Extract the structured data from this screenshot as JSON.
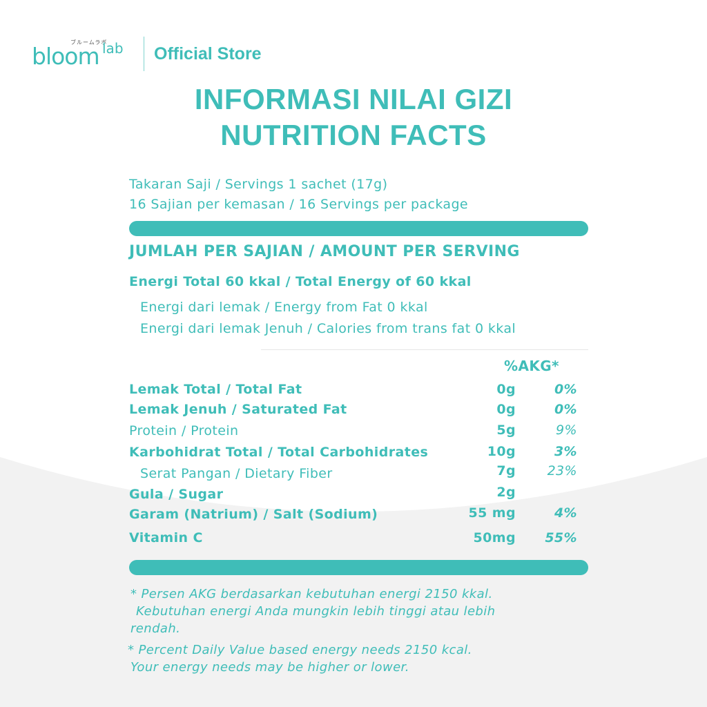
{
  "brand": {
    "logo_text": "bloom",
    "logo_sup": "lab",
    "logo_kana": "ブルームラボ",
    "store_label": "Official Store"
  },
  "title": {
    "line1": "INFORMASI NILAI GIZI",
    "line2": "NUTRITION FACTS"
  },
  "serving": {
    "size": "Takaran Saji / Servings 1 sachet (17g)",
    "per_package": "16 Sajian per kemasan / 16 Servings per package"
  },
  "amount_header": "JUMLAH PER SAJIAN / AMOUNT PER SERVING",
  "energy": {
    "total": "Energi Total 60 kkal / Total Energy of 60 kkal",
    "fat": "Energi dari lemak / Energy from Fat 0 kkal",
    "saturated": "Energi dari lemak Jenuh / Calories from trans fat 0 kkal"
  },
  "akg_header": "%AKG*",
  "nutrients": [
    {
      "label": "Lemak Total / Total Fat",
      "amount": "0g",
      "akg": "0%"
    },
    {
      "label": "Lemak Jenuh / Saturated Fat",
      "amount": "0g",
      "akg": "0%"
    },
    {
      "label": "Protein / Protein",
      "amount": "5g",
      "akg": "9%"
    },
    {
      "label": "Karbohidrat Total / Total Carbohidrates",
      "amount": "10g",
      "akg": "3%"
    },
    {
      "label": "Serat Pangan / Dietary Fiber",
      "amount": "7g",
      "akg": "23%"
    },
    {
      "label": "Gula / Sugar",
      "amount": "2g",
      "akg": ""
    },
    {
      "label": "Garam (Natrium) / Salt (Sodium)",
      "amount": "55 mg",
      "akg": "4%"
    },
    {
      "label": "Vitamin C",
      "amount": "50mg",
      "akg": "55%"
    }
  ],
  "footnote": {
    "id_line1": "* Persen AKG berdasarkan kebutuhan energi 2150 kkal.",
    "id_line2": "Kebutuhan energi Anda mungkin lebih tinggi atau lebih",
    "id_line3": "rendah.",
    "en_line1": "* Percent Daily Value based energy needs 2150 kcal.",
    "en_line2": "Your energy needs may be higher or lower."
  },
  "colors": {
    "accent": "#3fbdb8",
    "background_curve": "#f2f2f2"
  }
}
